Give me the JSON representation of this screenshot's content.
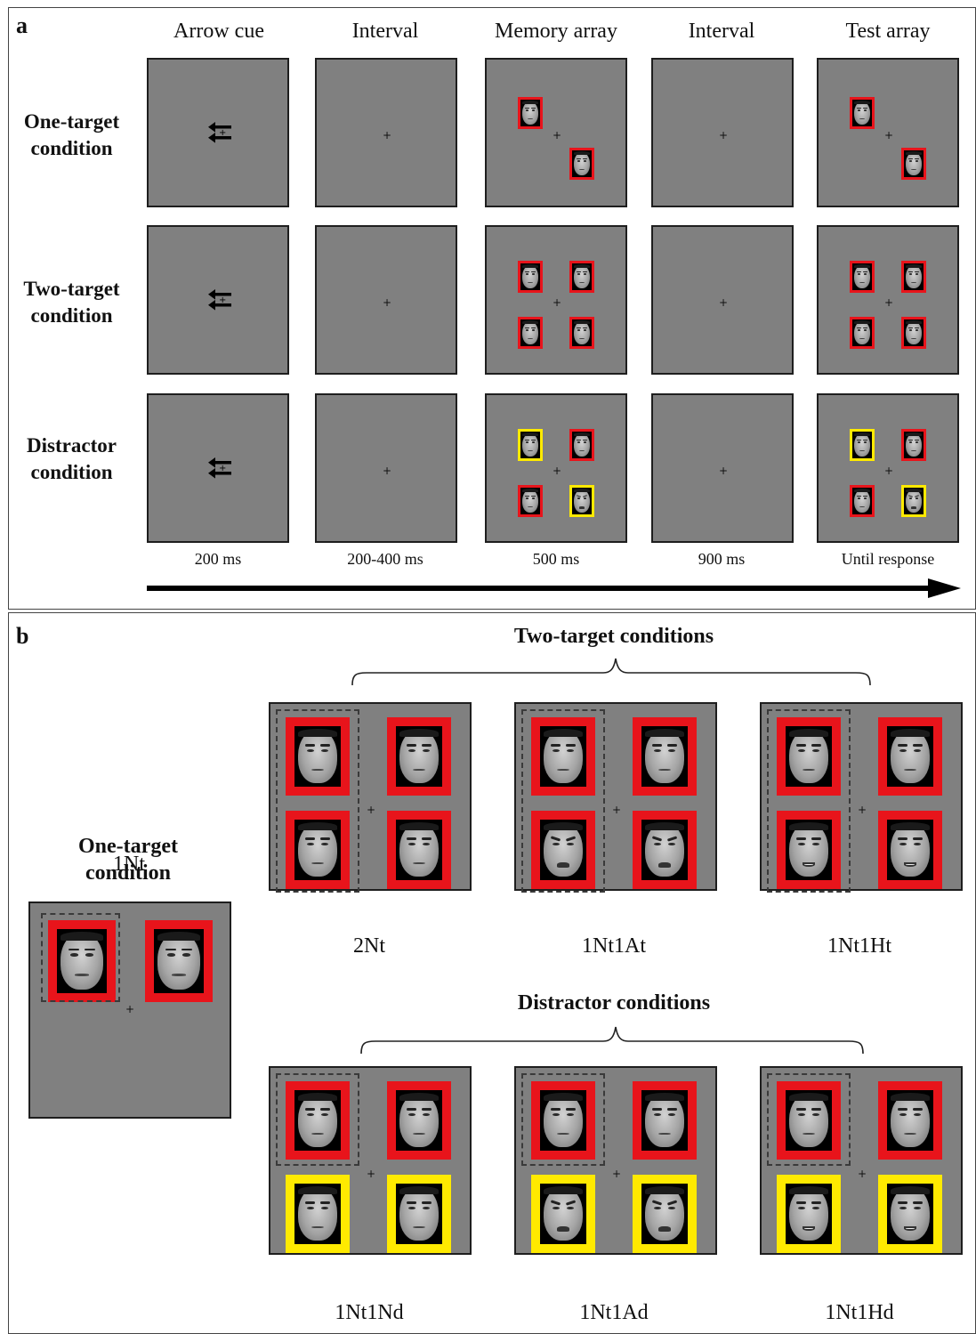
{
  "panel_a": {
    "letter": "a",
    "columns": [
      "Arrow cue",
      "Interval",
      "Memory array",
      "Interval",
      "Test array"
    ],
    "rows": [
      {
        "label_1": "One-target",
        "label_2": "condition"
      },
      {
        "label_1": "Two-target",
        "label_2": "condition"
      },
      {
        "label_1": "Distractor",
        "label_2": "condition"
      }
    ],
    "durations": [
      "200 ms",
      "200-400 ms",
      "500 ms",
      "900 ms",
      "Until response"
    ],
    "fixation": "+",
    "arrow_icon": "double-left-arrow-icon"
  },
  "panel_b": {
    "letter": "b",
    "two_target_title": "Two-target conditions",
    "distractor_title": "Distractor conditions",
    "one_target_title_1": "One-target",
    "one_target_title_2": "condition",
    "one_target_label": "1Nt",
    "two_target_labels": [
      "2Nt",
      "1Nt1At",
      "1Nt1Ht"
    ],
    "distractor_labels": [
      "1Nt1Nd",
      "1Nt1Ad",
      "1Nt1Hd"
    ],
    "fixation": "+"
  },
  "colors": {
    "screen_bg": "#808080",
    "target_frame": "#e8141b",
    "distractor_frame": "#ffea00"
  }
}
